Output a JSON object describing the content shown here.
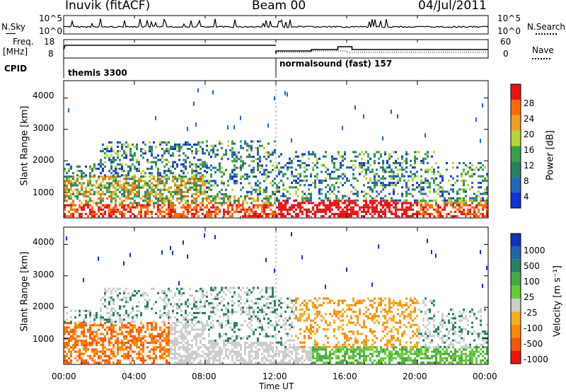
{
  "header": {
    "station": "Inuvik (fitACF)",
    "beam": "Beam 00",
    "date": "04/Jul/2011"
  },
  "summary_panel": {
    "left_labels": {
      "nsky": "N.Sky",
      "nsky_hi": "10^5",
      "nsky_lo": "10^0",
      "freq": "Freq.",
      "freq_unit": "[MHz]",
      "freq_hi": "18",
      "freq_lo": "8",
      "cpid": "CPID"
    },
    "right_labels": {
      "nsearch": "N.Search",
      "nsearch_hi": "10^5",
      "nsearch_lo": "10^0",
      "nave": "Nave",
      "nave_hi": "60",
      "nave_lo": "0"
    },
    "cpid_segments": [
      {
        "label": "themis 3300",
        "start_hour": 0,
        "end_hour": 12
      },
      {
        "label": "normalsound (fast) 157",
        "start_hour": 12,
        "end_hour": 24
      }
    ]
  },
  "time_axis": {
    "label": "Time UT",
    "ticks": [
      "00:00",
      "04:00",
      "08:00",
      "12:00",
      "16:00",
      "20:00",
      "00:00"
    ]
  },
  "chart_data": [
    {
      "type": "heatmap",
      "name": "power",
      "ylabel": "Slant Range [km]",
      "ylim": [
        180,
        4550
      ],
      "y_ticks": [
        1000,
        2000,
        3000,
        4000
      ],
      "xlim_hours": [
        0,
        24
      ],
      "colorbar": {
        "label": "Power [dB]",
        "range": [
          0,
          32
        ],
        "ticks": [
          "4",
          "8",
          "12",
          "16",
          "20",
          "24",
          "28"
        ],
        "colors": [
          "#1133dd",
          "#2266bb",
          "#2a7f5f",
          "#37a24a",
          "#b8d633",
          "#f0a020",
          "#ff6a00",
          "#ee1111"
        ]
      }
    },
    {
      "type": "heatmap",
      "name": "velocity",
      "ylabel": "Slant Range [km]",
      "ylim": [
        180,
        4550
      ],
      "y_ticks": [
        1000,
        2000,
        3000,
        4000
      ],
      "xlim_hours": [
        0,
        24
      ],
      "colorbar": {
        "label": "Velocity [m s⁻¹]",
        "ticks": [
          "1000",
          "500",
          "100",
          "25",
          "-25",
          "-100",
          "-500",
          "-1000"
        ],
        "colors": [
          "#1133bb",
          "#2266aa",
          "#2a8060",
          "#44aa44",
          "#66cc33",
          "#cccccc",
          "#f0b020",
          "#ff8800",
          "#ff5500",
          "#ee1111"
        ]
      }
    }
  ]
}
